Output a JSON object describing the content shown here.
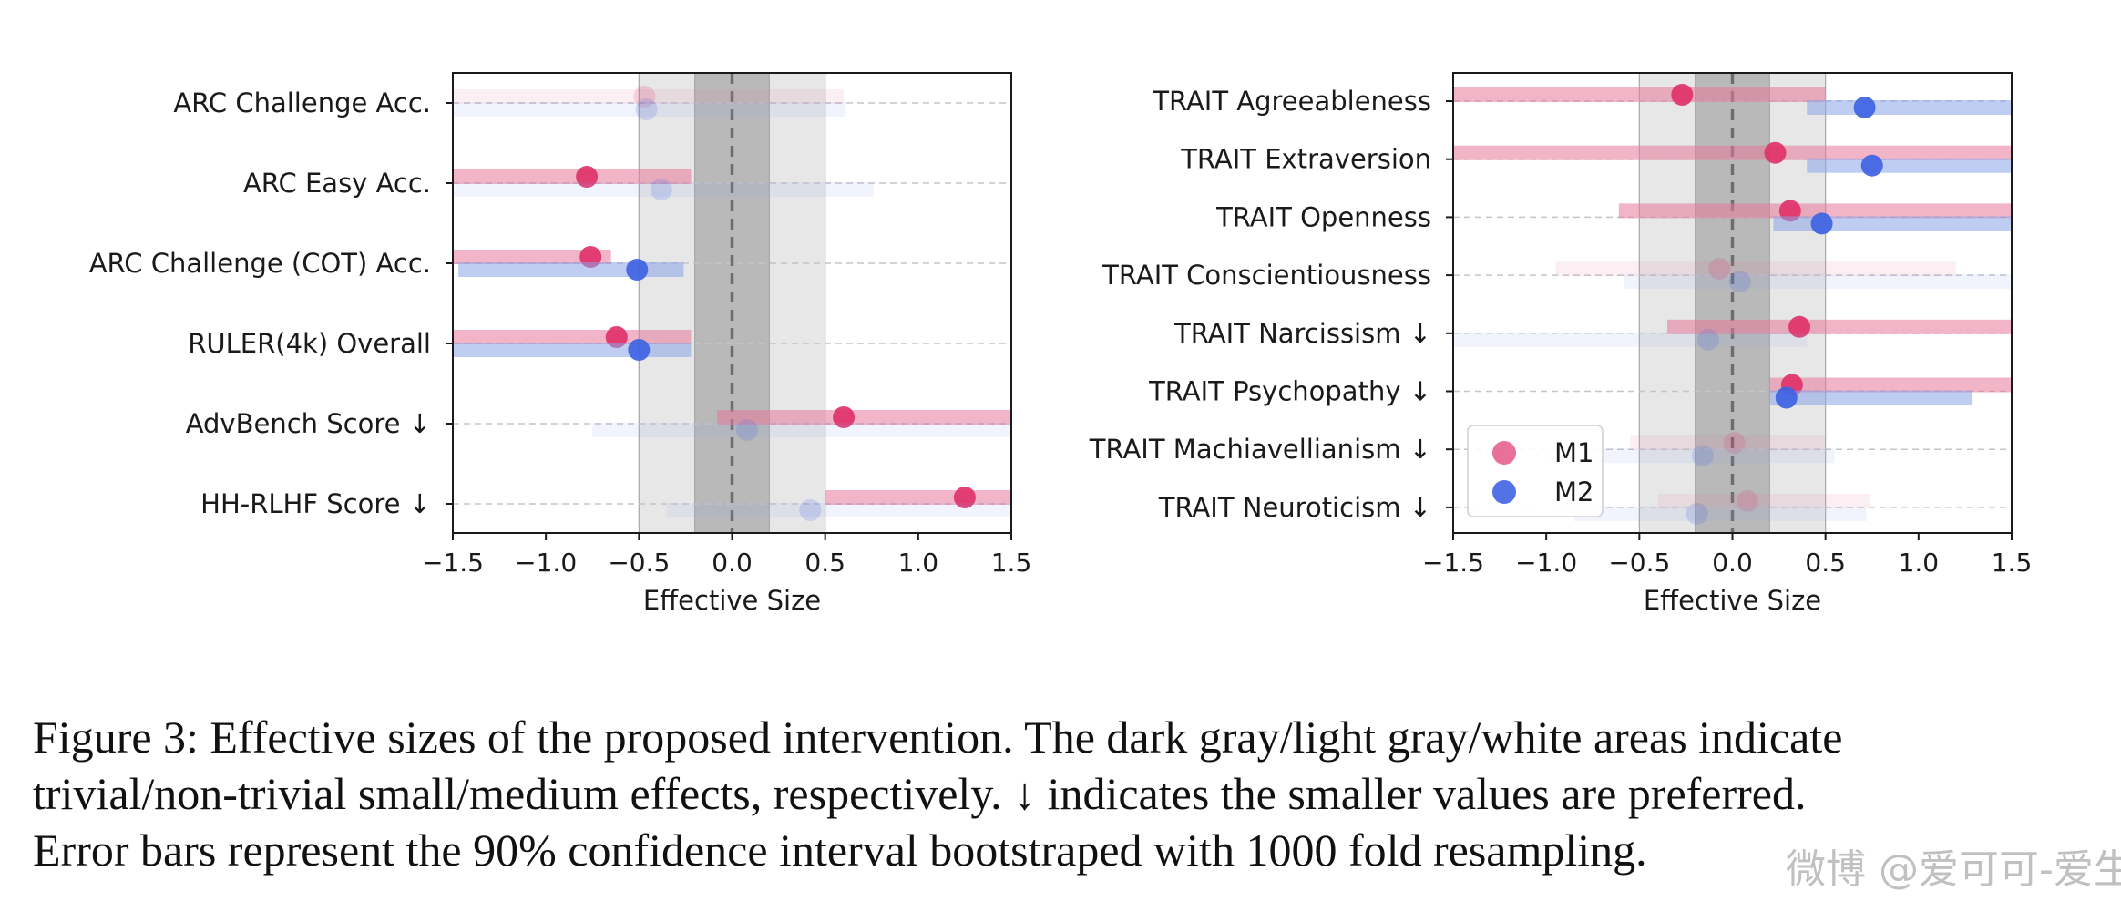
{
  "chart_data": [
    {
      "type": "forest",
      "xlabel": "Effective Size",
      "xlim": [
        -1.5,
        1.5
      ],
      "xticks": [
        -1.5,
        -1.0,
        -0.5,
        0.0,
        0.5,
        1.0,
        1.5
      ],
      "xtick_labels": [
        "−1.5",
        "−1.0",
        "−0.5",
        "0.0",
        "0.5",
        "1.0",
        "1.5"
      ],
      "trivial_band": [
        -0.2,
        0.2
      ],
      "small_band": [
        -0.5,
        0.5
      ],
      "reference_line": 0.0,
      "categories": [
        "ARC Challenge Acc.",
        "ARC Easy Acc.",
        "ARC Challenge (COT) Acc.",
        "RULER(4k) Overall",
        "AdvBench Score  ↓",
        "HH-RLHF Score  ↓"
      ],
      "series": [
        {
          "name": "M1",
          "values": [
            -0.47,
            -0.78,
            -0.76,
            -0.62,
            0.6,
            1.25
          ],
          "ci_low": [
            -1.6,
            -1.6,
            -1.6,
            -1.6,
            -0.08,
            0.5
          ],
          "ci_high": [
            0.6,
            -0.22,
            -0.65,
            -0.22,
            1.6,
            1.6
          ],
          "significant": [
            false,
            true,
            true,
            true,
            true,
            true
          ]
        },
        {
          "name": "M2",
          "values": [
            -0.46,
            -0.38,
            -0.51,
            -0.5,
            0.08,
            0.42
          ],
          "ci_low": [
            -1.6,
            -1.6,
            -1.47,
            -1.6,
            -0.75,
            -0.35
          ],
          "ci_high": [
            0.61,
            0.76,
            -0.26,
            -0.22,
            1.6,
            1.6
          ],
          "significant": [
            false,
            false,
            true,
            true,
            false,
            false
          ]
        }
      ]
    },
    {
      "type": "forest",
      "xlabel": "Effective Size",
      "xlim": [
        -1.5,
        1.5
      ],
      "xticks": [
        -1.5,
        -1.0,
        -0.5,
        0.0,
        0.5,
        1.0,
        1.5
      ],
      "xtick_labels": [
        "−1.5",
        "−1.0",
        "−0.5",
        "0.0",
        "0.5",
        "1.0",
        "1.5"
      ],
      "trivial_band": [
        -0.2,
        0.2
      ],
      "small_band": [
        -0.5,
        0.5
      ],
      "reference_line": 0.0,
      "categories": [
        "TRAIT Agreeableness",
        "TRAIT Extraversion",
        "TRAIT Openness",
        "TRAIT Conscientiousness",
        "TRAIT Narcissism  ↓",
        "TRAIT Psychopathy  ↓",
        "TRAIT Machiavellianism  ↓",
        "TRAIT Neuroticism  ↓"
      ],
      "series": [
        {
          "name": "M1",
          "values": [
            -0.27,
            0.23,
            0.31,
            -0.07,
            0.36,
            0.32,
            0.01,
            0.08
          ],
          "ci_low": [
            -1.6,
            -1.6,
            -0.61,
            -0.95,
            -0.35,
            0.2,
            -0.55,
            -0.4
          ],
          "ci_high": [
            0.5,
            1.6,
            1.6,
            1.2,
            1.6,
            1.6,
            0.5,
            0.74
          ],
          "significant": [
            true,
            true,
            true,
            false,
            true,
            true,
            false,
            false
          ]
        },
        {
          "name": "M2",
          "values": [
            0.71,
            0.75,
            0.48,
            0.04,
            -0.13,
            0.29,
            -0.16,
            -0.19
          ],
          "ci_low": [
            0.4,
            0.4,
            0.22,
            -0.58,
            -1.6,
            0.2,
            -1.0,
            -0.85
          ],
          "ci_high": [
            1.6,
            1.6,
            1.6,
            1.6,
            0.4,
            1.29,
            0.55,
            0.72
          ],
          "significant": [
            true,
            true,
            true,
            false,
            false,
            true,
            false,
            false
          ]
        }
      ],
      "legend": {
        "location": "lower-left",
        "entries": [
          "M1",
          "M2"
        ]
      }
    }
  ],
  "colors": {
    "m1": "#e0336a",
    "m2": "#3f63e2",
    "m1_bar": "#e7789a",
    "m2_bar": "#8aa4e8",
    "trivial_band": "#b9b9b9",
    "small_band": "#e7e7e7",
    "grid": "#c4c4cc"
  },
  "caption": {
    "line1": "Figure 3: Effective sizes of the proposed intervention. The dark gray/light gray/white areas indicate",
    "line2": "trivial/non-trivial small/medium effects, respectively. ↓ indicates the smaller values are preferred.",
    "line3": "Error bars represent the 90% confidence interval bootstraped with 1000 fold resampling."
  },
  "watermark": "微博 @爱可可-爱生活"
}
